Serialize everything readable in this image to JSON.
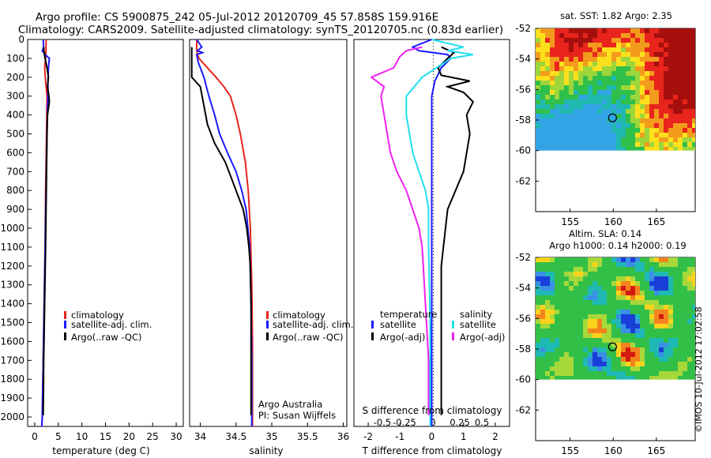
{
  "header": {
    "line1": "Argo profile: CS 5900875_242 05-Jul-2012 20120709_45 57.858S 159.916E",
    "line2": "Climatology: CARS2009. Satellite-adjusted climatology: synTS_20120705.nc (0.83d earlier)"
  },
  "colors": {
    "climatology": "#e8241c",
    "satellite_adj": "#1a1aff",
    "argo": "#000000",
    "satellite_s": "#22e0ee",
    "argo_s": "#ee22ee"
  },
  "chart_data": [
    {
      "type": "line",
      "name": "temperature-panel",
      "xlabel": "temperature (deg C)",
      "xlim": [
        -1.5,
        31.5
      ],
      "ylim": [
        2050,
        0
      ],
      "xticks": [
        "0",
        "5",
        "10",
        "15",
        "20",
        "25",
        "30"
      ],
      "yticks": [
        "0",
        "100",
        "200",
        "300",
        "400",
        "500",
        "600",
        "700",
        "800",
        "900",
        "1000",
        "1100",
        "1200",
        "1300",
        "1400",
        "1500",
        "1600",
        "1700",
        "1800",
        "1900",
        "2000"
      ],
      "legend": [
        "climatology",
        "satellite-adj. clim.",
        "Argo(..raw -QC)"
      ],
      "series": [
        {
          "name": "climatology",
          "color": "#e8241c",
          "points": [
            [
              2.4,
              0
            ],
            [
              2.4,
              60
            ],
            [
              2.3,
              100
            ],
            [
              2.1,
              150
            ],
            [
              2.3,
              220
            ],
            [
              2.6,
              300
            ],
            [
              2.5,
              500
            ],
            [
              2.3,
              800
            ],
            [
              2.2,
              1100
            ],
            [
              2.0,
              1400
            ],
            [
              1.8,
              1700
            ],
            [
              1.6,
              2000
            ],
            [
              1.5,
              2050
            ]
          ]
        },
        {
          "name": "satellite-adj. clim.",
          "color": "#1a1aff",
          "points": [
            [
              1.8,
              0
            ],
            [
              1.9,
              40
            ],
            [
              1.6,
              60
            ],
            [
              2.2,
              80
            ],
            [
              3.1,
              100
            ],
            [
              2.9,
              150
            ],
            [
              2.8,
              220
            ],
            [
              2.8,
              300
            ],
            [
              2.6,
              500
            ],
            [
              2.4,
              800
            ],
            [
              2.2,
              1100
            ],
            [
              2.0,
              1400
            ],
            [
              1.8,
              1700
            ],
            [
              1.6,
              2000
            ],
            [
              1.5,
              2050
            ]
          ]
        },
        {
          "name": "Argo(..raw -QC)",
          "color": "#000000",
          "points": [
            [
              1.9,
              40
            ],
            [
              2.0,
              70
            ],
            [
              2.2,
              100
            ],
            [
              2.6,
              150
            ],
            [
              2.9,
              200
            ],
            [
              2.7,
              250
            ],
            [
              3.0,
              300
            ],
            [
              3.1,
              330
            ],
            [
              2.7,
              400
            ],
            [
              2.6,
              500
            ],
            [
              2.5,
              700
            ],
            [
              2.4,
              900
            ],
            [
              2.3,
              1100
            ],
            [
              2.1,
              1400
            ],
            [
              1.9,
              1700
            ],
            [
              1.8,
              1990
            ]
          ]
        }
      ]
    },
    {
      "type": "line",
      "name": "salinity-panel",
      "xlabel": "salinity",
      "xlim": [
        33.85,
        36.05
      ],
      "ylim": [
        2050,
        0
      ],
      "xticks": [
        "34",
        "34.5",
        "35",
        "35.5",
        "36"
      ],
      "legend": [
        "climatology",
        "satellite-adj. clim.",
        "Argo(..raw -QC)"
      ],
      "annotation": [
        "Argo Australia",
        "PI: Susan Wijffels"
      ],
      "series": [
        {
          "name": "climatology",
          "color": "#e8241c",
          "points": [
            [
              33.95,
              0
            ],
            [
              33.95,
              50
            ],
            [
              33.96,
              80
            ],
            [
              33.98,
              100
            ],
            [
              34.1,
              150
            ],
            [
              34.22,
              200
            ],
            [
              34.33,
              250
            ],
            [
              34.42,
              300
            ],
            [
              34.5,
              400
            ],
            [
              34.56,
              500
            ],
            [
              34.63,
              650
            ],
            [
              34.67,
              800
            ],
            [
              34.7,
              1000
            ],
            [
              34.72,
              1300
            ],
            [
              34.73,
              1600
            ],
            [
              34.73,
              2000
            ],
            [
              34.73,
              2050
            ]
          ]
        },
        {
          "name": "satellite-adj. clim.",
          "color": "#1a1aff",
          "points": [
            [
              33.95,
              0
            ],
            [
              34.02,
              40
            ],
            [
              33.96,
              60
            ],
            [
              34.03,
              70
            ],
            [
              33.95,
              80
            ],
            [
              33.97,
              120
            ],
            [
              34.05,
              200
            ],
            [
              34.12,
              300
            ],
            [
              34.2,
              400
            ],
            [
              34.27,
              500
            ],
            [
              34.38,
              600
            ],
            [
              34.5,
              700
            ],
            [
              34.58,
              800
            ],
            [
              34.64,
              900
            ],
            [
              34.69,
              1100
            ],
            [
              34.71,
              1400
            ],
            [
              34.72,
              1700
            ],
            [
              34.72,
              2050
            ]
          ]
        },
        {
          "name": "Argo(..raw -QC)",
          "color": "#000000",
          "points": [
            [
              33.88,
              40
            ],
            [
              33.88,
              200
            ],
            [
              34.0,
              250
            ],
            [
              34.05,
              350
            ],
            [
              34.1,
              450
            ],
            [
              34.2,
              550
            ],
            [
              34.35,
              650
            ],
            [
              34.45,
              750
            ],
            [
              34.55,
              850
            ],
            [
              34.6,
              900
            ],
            [
              34.65,
              1000
            ],
            [
              34.68,
              1100
            ],
            [
              34.7,
              1200
            ],
            [
              34.71,
              1400
            ],
            [
              34.71,
              1700
            ],
            [
              34.71,
              1990
            ]
          ]
        }
      ]
    },
    {
      "type": "line",
      "name": "difference-panel",
      "xlabel": "T difference from climatology",
      "x2label": "S difference from climatology",
      "xlim": [
        -2.45,
        2.45
      ],
      "ylim": [
        2050,
        0
      ],
      "xticks": [
        "-2",
        "-1",
        "0",
        "1",
        "2"
      ],
      "x2ticks": [
        "-0.5",
        "-0.25",
        "0",
        "0.25",
        "0.5"
      ],
      "legend_t": [
        "temperature",
        "satellite",
        "Argo(-adj)"
      ],
      "legend_s": [
        "salinity",
        "satellite",
        "Argo(-adj)"
      ],
      "series": [
        {
          "name": "T satellite",
          "color": "#1a1aff",
          "points": [
            [
              0.0,
              0
            ],
            [
              -0.6,
              40
            ],
            [
              -0.4,
              60
            ],
            [
              0.5,
              80
            ],
            [
              0.6,
              100
            ],
            [
              0.3,
              150
            ],
            [
              0.1,
              220
            ],
            [
              0.0,
              300
            ],
            [
              0.0,
              2050
            ]
          ]
        },
        {
          "name": "T Argo(-adj)",
          "color": "#000000",
          "points": [
            [
              0.3,
              40
            ],
            [
              0.7,
              70
            ],
            [
              0.5,
              100
            ],
            [
              0.2,
              150
            ],
            [
              0.3,
              190
            ],
            [
              1.2,
              220
            ],
            [
              0.5,
              250
            ],
            [
              1.0,
              280
            ],
            [
              1.3,
              330
            ],
            [
              1.1,
              400
            ],
            [
              1.2,
              500
            ],
            [
              1.0,
              700
            ],
            [
              0.5,
              900
            ],
            [
              0.3,
              1200
            ],
            [
              0.3,
              1600
            ],
            [
              0.3,
              1990
            ]
          ]
        },
        {
          "name": "S satellite",
          "color": "#22e0ee",
          "points": [
            [
              0.0,
              0
            ],
            [
              1.0,
              40
            ],
            [
              0.5,
              60
            ],
            [
              1.3,
              80
            ],
            [
              0.6,
              100
            ],
            [
              -0.3,
              200
            ],
            [
              -0.8,
              300
            ],
            [
              -0.8,
              400
            ],
            [
              -0.6,
              600
            ],
            [
              -0.4,
              700
            ],
            [
              -0.2,
              800
            ],
            [
              -0.1,
              900
            ],
            [
              -0.1,
              1100
            ],
            [
              -0.05,
              1500
            ],
            [
              -0.05,
              2050
            ]
          ]
        },
        {
          "name": "S Argo(-adj)",
          "color": "#ee22ee",
          "points": [
            [
              -0.3,
              40
            ],
            [
              -0.8,
              60
            ],
            [
              -1.0,
              90
            ],
            [
              -1.2,
              150
            ],
            [
              -1.9,
              200
            ],
            [
              -1.5,
              250
            ],
            [
              -1.6,
              300
            ],
            [
              -1.5,
              400
            ],
            [
              -1.4,
              500
            ],
            [
              -1.3,
              600
            ],
            [
              -1.1,
              700
            ],
            [
              -0.8,
              800
            ],
            [
              -0.6,
              900
            ],
            [
              -0.4,
              1000
            ],
            [
              -0.3,
              1100
            ],
            [
              -0.2,
              1400
            ],
            [
              -0.1,
              1700
            ],
            [
              -0.1,
              1990
            ]
          ]
        }
      ]
    },
    {
      "type": "heatmap",
      "name": "sst-map",
      "title": "sat. SST: 1.82 Argo: 2.35",
      "xlim": [
        151,
        169.5
      ],
      "ylim": [
        -64,
        -52
      ],
      "xticks": [
        "155",
        "160",
        "165"
      ],
      "yticks": [
        "-52",
        "-54",
        "-56",
        "-58",
        "-60",
        "-62"
      ],
      "marker": [
        159.916,
        -57.858
      ]
    },
    {
      "type": "heatmap",
      "name": "sla-map",
      "title_line1": "Altim. SLA: 0.14",
      "title_line2": "Argo h1000: 0.14 h2000: 0.19",
      "xlim": [
        151,
        169.5
      ],
      "ylim": [
        -64,
        -52
      ],
      "xticks": [
        "155",
        "160",
        "165"
      ],
      "yticks": [
        "-52",
        "-54",
        "-56",
        "-58",
        "-60",
        "-62"
      ],
      "marker": [
        159.916,
        -57.858
      ]
    }
  ],
  "footer": {
    "stamp": "©IMOS 10-Jul-2012 17:02:58"
  }
}
